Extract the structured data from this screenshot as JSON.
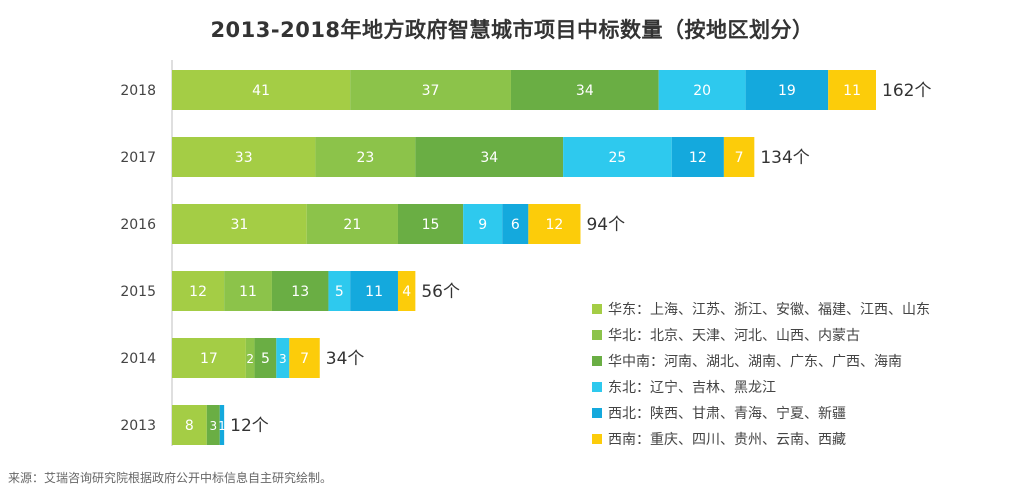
{
  "chart_data": {
    "type": "bar",
    "orientation": "horizontal",
    "stacked": true,
    "title": "2013-2018年地方政府智慧城市项目中标数量（按地区划分）",
    "categories": [
      "2018",
      "2017",
      "2016",
      "2015",
      "2014",
      "2013"
    ],
    "xlim": [
      0,
      162
    ],
    "grid": false,
    "legend_position": "bottom-right",
    "series": [
      {
        "name": "华东",
        "regions": "上海、江苏、浙江、安徽、福建、江西、山东",
        "color": "#a4cd45",
        "values": [
          41,
          33,
          31,
          12,
          17,
          8
        ]
      },
      {
        "name": "华北",
        "regions": "北京、天津、河北、山西、内蒙古",
        "color": "#8cc34a",
        "values": [
          37,
          23,
          21,
          11,
          2,
          0
        ]
      },
      {
        "name": "华中南",
        "regions": "河南、湖北、湖南、广东、广西、海南",
        "color": "#6aae44",
        "values": [
          34,
          34,
          15,
          13,
          5,
          3
        ]
      },
      {
        "name": "东北",
        "regions": "辽宁、吉林、黑龙江",
        "color": "#2ec9ee",
        "values": [
          20,
          25,
          9,
          5,
          3,
          0
        ]
      },
      {
        "name": "西北",
        "regions": "陕西、甘肃、青海、宁夏、新疆",
        "color": "#14a9dd",
        "values": [
          19,
          12,
          6,
          11,
          0,
          1
        ]
      },
      {
        "name": "西南",
        "regions": "重庆、四川、贵州、云南、西藏",
        "color": "#fccc0a",
        "values": [
          11,
          7,
          12,
          4,
          7,
          0
        ]
      }
    ],
    "totals": [
      "162个",
      "134个",
      "94个",
      "56个",
      "34个",
      "12个"
    ]
  },
  "legend": {
    "separator": "："
  },
  "source_note": "来源：艾瑞咨询研究院根据政府公开中标信息自主研究绘制。"
}
